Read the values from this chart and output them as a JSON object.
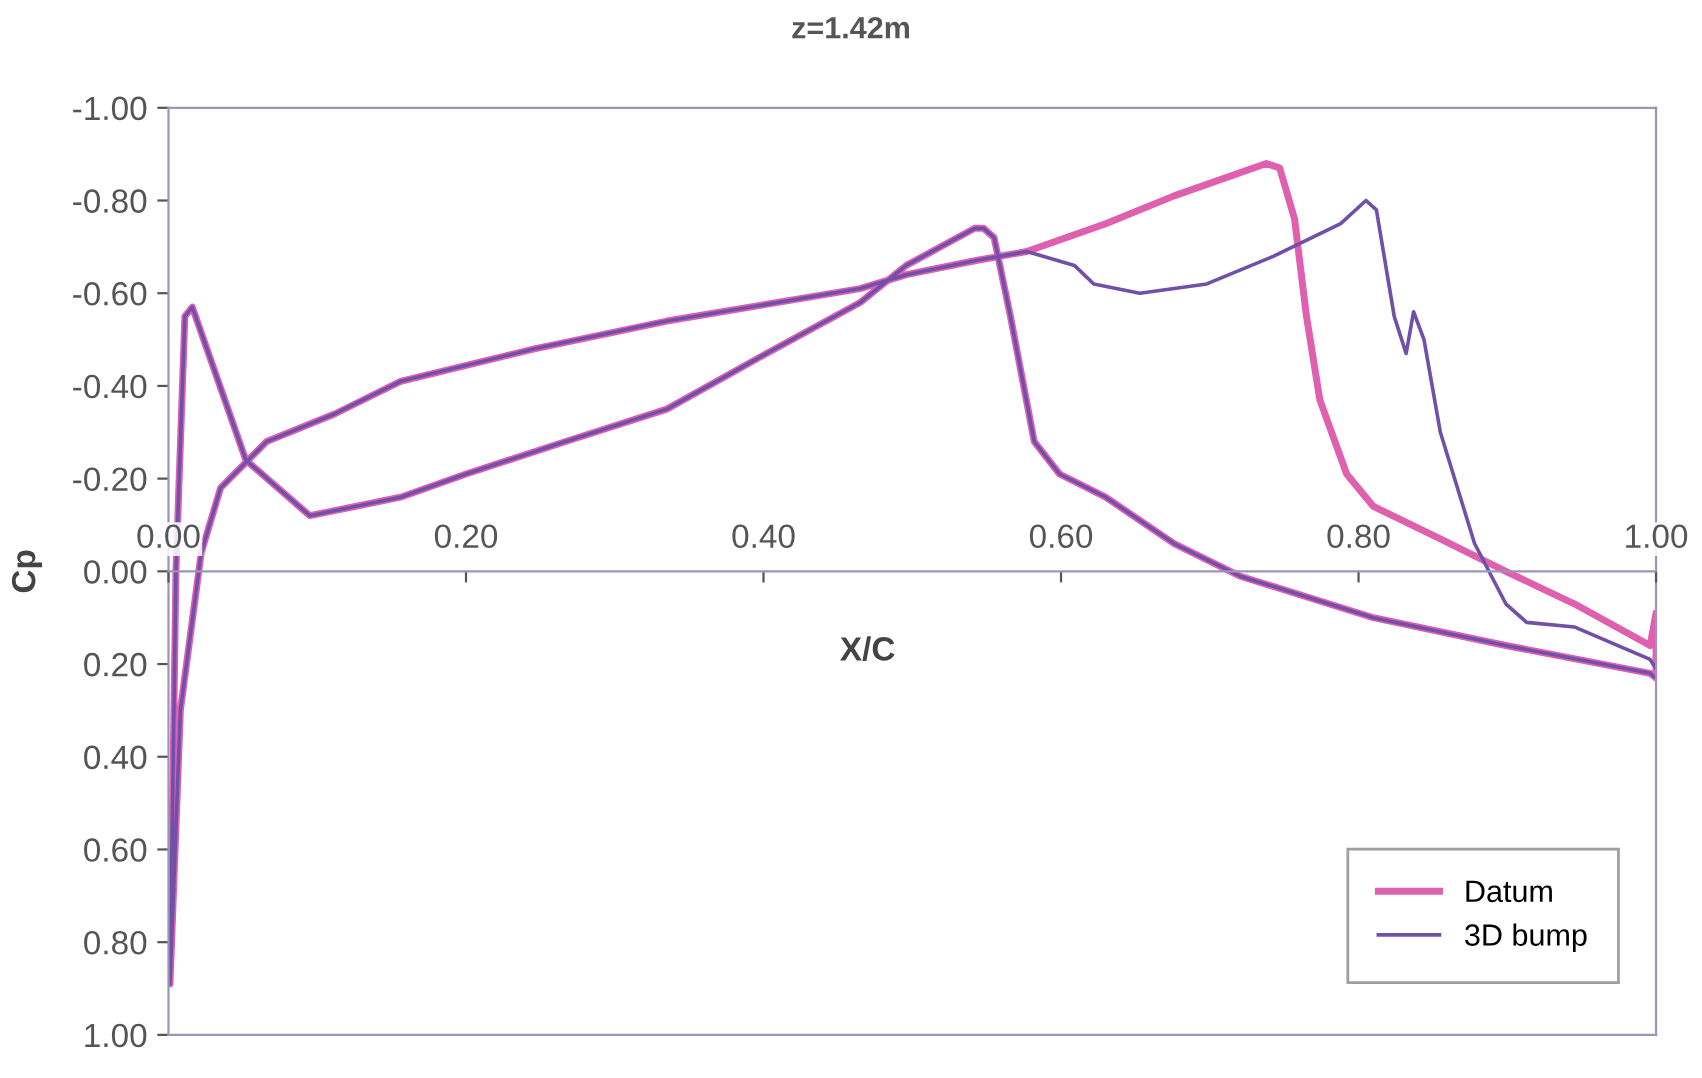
{
  "chart_data": {
    "type": "line",
    "title": "z=1.42m",
    "xlabel": "X/C",
    "ylabel": "Cp",
    "xlim": [
      0,
      1
    ],
    "xticks": [
      {
        "value": 0,
        "label": "0.00"
      },
      {
        "value": 0.2,
        "label": "0.20"
      },
      {
        "value": 0.4,
        "label": "0.40"
      },
      {
        "value": 0.6,
        "label": "0.60"
      },
      {
        "value": 0.8,
        "label": "0.80"
      },
      {
        "value": 1,
        "label": "1.00"
      }
    ],
    "ylim": [
      1,
      -1
    ],
    "yticks": [
      {
        "value": -1,
        "label": "-1.00"
      },
      {
        "value": -0.8,
        "label": "-0.80"
      },
      {
        "value": -0.6,
        "label": "-0.60"
      },
      {
        "value": -0.4,
        "label": "-0.40"
      },
      {
        "value": -0.2,
        "label": "-0.20"
      },
      {
        "value": 0,
        "label": "0.00"
      },
      {
        "value": 0.2,
        "label": "0.20"
      },
      {
        "value": 0.4,
        "label": "0.40"
      },
      {
        "value": 0.6,
        "label": "0.60"
      },
      {
        "value": 0.8,
        "label": "0.80"
      },
      {
        "value": 1,
        "label": "1.00"
      }
    ],
    "grid": false,
    "legend": "bottom right",
    "marker": "none",
    "line_style": "solid",
    "series": [
      {
        "name": "Datum",
        "color": "#e060b0",
        "x": [
          1.0,
          0.996,
          0.899,
          0.81,
          0.72,
          0.676,
          0.63,
          0.599,
          0.582,
          0.566,
          0.555,
          0.548,
          0.542,
          0.496,
          0.465,
          0.402,
          0.335,
          0.267,
          0.2,
          0.156,
          0.095,
          0.052,
          0.016,
          0.011,
          0.005,
          0.001,
          0.008,
          0.022,
          0.035,
          0.066,
          0.112,
          0.156,
          0.246,
          0.335,
          0.465,
          0.496,
          0.542,
          0.577,
          0.63,
          0.676,
          0.738,
          0.747,
          0.757,
          0.765,
          0.774,
          0.792,
          0.81,
          0.855,
          0.899,
          0.945,
          0.996,
          1.0,
          1.0
        ],
        "values": [
          0.23,
          0.22,
          0.16,
          0.1,
          0.01,
          -0.06,
          -0.16,
          -0.21,
          -0.28,
          -0.55,
          -0.72,
          -0.74,
          -0.74,
          -0.66,
          -0.58,
          -0.47,
          -0.35,
          -0.28,
          -0.21,
          -0.16,
          -0.12,
          -0.24,
          -0.57,
          -0.55,
          0.0,
          0.89,
          0.3,
          -0.04,
          -0.18,
          -0.28,
          -0.34,
          -0.41,
          -0.48,
          -0.54,
          -0.61,
          -0.64,
          -0.67,
          -0.69,
          -0.75,
          -0.81,
          -0.88,
          -0.87,
          -0.76,
          -0.55,
          -0.37,
          -0.21,
          -0.14,
          -0.07,
          0.0,
          0.07,
          0.16,
          0.09,
          0.22
        ]
      },
      {
        "name": "3D bump",
        "color": "#7050a8",
        "x": [
          1.0,
          0.996,
          0.899,
          0.81,
          0.72,
          0.676,
          0.63,
          0.599,
          0.582,
          0.566,
          0.555,
          0.548,
          0.542,
          0.496,
          0.465,
          0.402,
          0.335,
          0.267,
          0.2,
          0.156,
          0.095,
          0.052,
          0.016,
          0.011,
          0.005,
          0.001,
          0.008,
          0.022,
          0.035,
          0.066,
          0.112,
          0.156,
          0.246,
          0.335,
          0.465,
          0.496,
          0.542,
          0.577,
          0.609,
          0.622,
          0.653,
          0.698,
          0.743,
          0.788,
          0.805,
          0.812,
          0.824,
          0.832,
          0.837,
          0.844,
          0.855,
          0.878,
          0.899,
          0.913,
          0.945,
          0.996,
          1.0
        ],
        "values": [
          0.23,
          0.22,
          0.16,
          0.1,
          0.01,
          -0.06,
          -0.16,
          -0.21,
          -0.28,
          -0.55,
          -0.72,
          -0.74,
          -0.74,
          -0.66,
          -0.58,
          -0.47,
          -0.35,
          -0.28,
          -0.21,
          -0.16,
          -0.12,
          -0.24,
          -0.57,
          -0.55,
          0.0,
          0.89,
          0.3,
          -0.04,
          -0.18,
          -0.28,
          -0.34,
          -0.41,
          -0.48,
          -0.54,
          -0.61,
          -0.64,
          -0.67,
          -0.69,
          -0.66,
          -0.62,
          -0.6,
          -0.62,
          -0.68,
          -0.75,
          -0.8,
          -0.78,
          -0.55,
          -0.47,
          -0.56,
          -0.5,
          -0.3,
          -0.06,
          0.07,
          0.11,
          0.12,
          0.19,
          0.21
        ]
      }
    ]
  }
}
